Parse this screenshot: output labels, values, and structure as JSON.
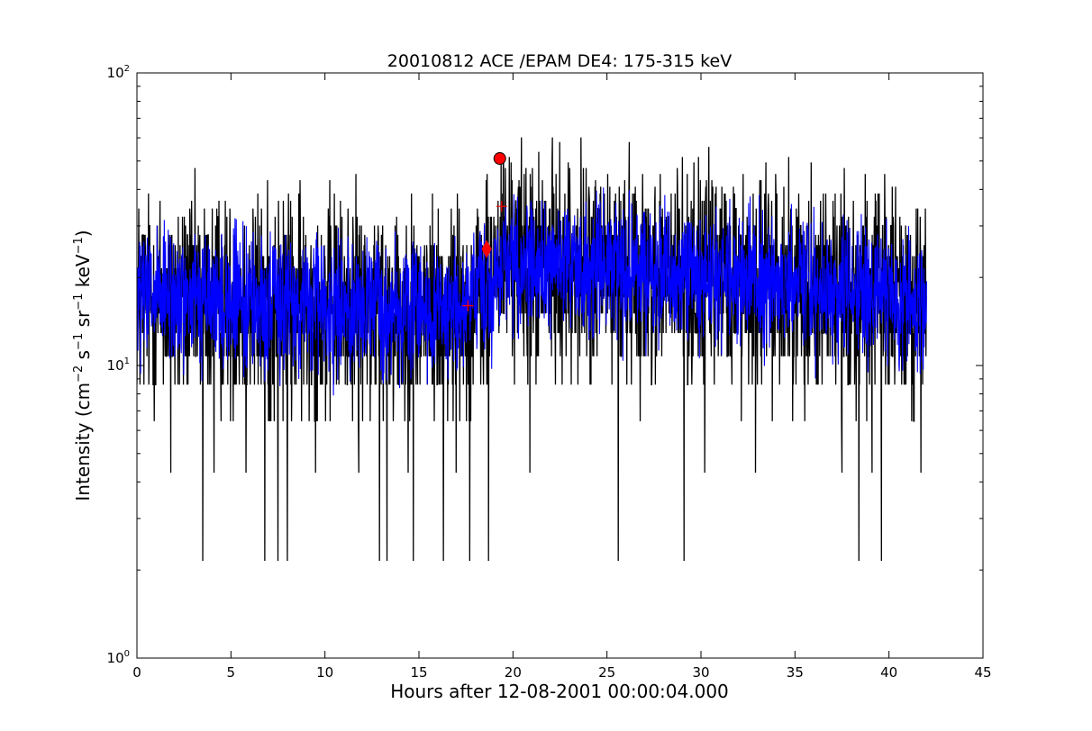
{
  "chart_data": {
    "type": "line",
    "title": "20010812 ACE /EPAM DE4: 175-315 keV",
    "xlabel": "Hours after 12-08-2001 00:00:04.000",
    "ylabel": {
      "prefix": "Intensity (cm",
      "sup1": "−2",
      "mid1": " s",
      "sup2": "−1",
      "mid2": " sr",
      "sup3": "−1",
      "mid3": " keV",
      "sup4": "−1",
      "suffix": ")"
    },
    "xlim": [
      0,
      45
    ],
    "ylim": [
      1,
      100
    ],
    "yscale": "log",
    "grid": false,
    "x_ticks": [
      0,
      5,
      10,
      15,
      20,
      25,
      30,
      35,
      40,
      45
    ],
    "y_ticks": [
      {
        "value": 1,
        "base": "10",
        "exp": "0"
      },
      {
        "value": 10,
        "base": "10",
        "exp": "1"
      },
      {
        "value": 100,
        "base": "10",
        "exp": "2"
      }
    ],
    "series": [
      {
        "color": "#000000",
        "x_range": [
          0,
          42
        ],
        "profile": [
          {
            "x": 0,
            "y": 17
          },
          {
            "x": 5,
            "y": 16
          },
          {
            "x": 10,
            "y": 16
          },
          {
            "x": 15,
            "y": 15.5
          },
          {
            "x": 17,
            "y": 15
          },
          {
            "x": 18.6,
            "y": 17
          },
          {
            "x": 19.3,
            "y": 24
          },
          {
            "x": 21,
            "y": 22
          },
          {
            "x": 25,
            "y": 21
          },
          {
            "x": 30,
            "y": 20
          },
          {
            "x": 35,
            "y": 19
          },
          {
            "x": 40,
            "y": 17
          },
          {
            "x": 42,
            "y": 16
          }
        ],
        "dips": [
          {
            "x": 3.5,
            "y": 2.15
          },
          {
            "x": 6.8,
            "y": 2.15
          },
          {
            "x": 7.5,
            "y": 2.15
          },
          {
            "x": 8.0,
            "y": 2.15
          },
          {
            "x": 12.9,
            "y": 2.15
          },
          {
            "x": 13.3,
            "y": 2.15
          },
          {
            "x": 14.7,
            "y": 2.15
          },
          {
            "x": 16.3,
            "y": 2.15
          },
          {
            "x": 17.7,
            "y": 2.15
          },
          {
            "x": 18.7,
            "y": 2.15
          },
          {
            "x": 25.6,
            "y": 2.15
          },
          {
            "x": 29.1,
            "y": 2.15
          },
          {
            "x": 38.4,
            "y": 2.15
          },
          {
            "x": 39.6,
            "y": 2.15
          },
          {
            "x": 1.8,
            "y": 4.3
          },
          {
            "x": 4.1,
            "y": 4.3
          },
          {
            "x": 5.8,
            "y": 4.3
          },
          {
            "x": 9.5,
            "y": 4.3
          },
          {
            "x": 11.8,
            "y": 4.3
          },
          {
            "x": 20.9,
            "y": 4.3
          },
          {
            "x": 30.2,
            "y": 4.3
          },
          {
            "x": 32.9,
            "y": 4.3
          },
          {
            "x": 37.5,
            "y": 4.3
          },
          {
            "x": 39.1,
            "y": 4.3
          },
          {
            "x": 41.7,
            "y": 4.3
          }
        ]
      },
      {
        "color": "#0000ff",
        "x_range": [
          0,
          42
        ],
        "profile": [
          {
            "x": 0,
            "y": 17
          },
          {
            "x": 5,
            "y": 16.5
          },
          {
            "x": 10,
            "y": 16
          },
          {
            "x": 15,
            "y": 15.5
          },
          {
            "x": 17.5,
            "y": 15.5
          },
          {
            "x": 18.6,
            "y": 18
          },
          {
            "x": 19.3,
            "y": 23
          },
          {
            "x": 22,
            "y": 22
          },
          {
            "x": 26,
            "y": 21
          },
          {
            "x": 30,
            "y": 20.5
          },
          {
            "x": 35,
            "y": 19
          },
          {
            "x": 40,
            "y": 17.5
          },
          {
            "x": 42,
            "y": 16
          }
        ]
      }
    ],
    "markers": [
      {
        "shape": "circle",
        "x": 19.3,
        "y": 51,
        "color": "#ff0000"
      },
      {
        "shape": "diamond",
        "x": 18.6,
        "y": 25,
        "color": "#ff0000"
      },
      {
        "shape": "plus",
        "x": 17.6,
        "y": 16,
        "color": "#ff0000"
      },
      {
        "shape": "plus",
        "x": 19.4,
        "y": 35,
        "color": "#ff0000"
      }
    ]
  }
}
